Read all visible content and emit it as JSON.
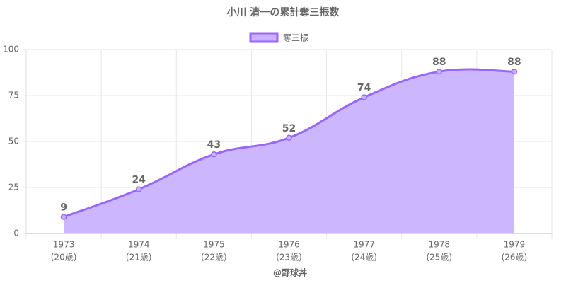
{
  "chart_data": {
    "type": "area",
    "title": "小川 清一の累計奪三振数",
    "x_label": "@野球丼",
    "categories": [
      [
        "1973",
        "(20歳)"
      ],
      [
        "1974",
        "(21歳)"
      ],
      [
        "1975",
        "(22歳)"
      ],
      [
        "1976",
        "(23歳)"
      ],
      [
        "1977",
        "(24歳)"
      ],
      [
        "1978",
        "(25歳)"
      ],
      [
        "1979",
        "(26歳)"
      ]
    ],
    "series": [
      {
        "name": "奪三振",
        "color": "#9966ff",
        "fill": "#c9b3ff",
        "values": [
          9,
          24,
          43,
          52,
          74,
          88,
          88
        ]
      }
    ],
    "ylim": [
      0,
      100
    ],
    "yticks": [
      0,
      25,
      50,
      75,
      100
    ],
    "grid": true,
    "legend": "top"
  }
}
